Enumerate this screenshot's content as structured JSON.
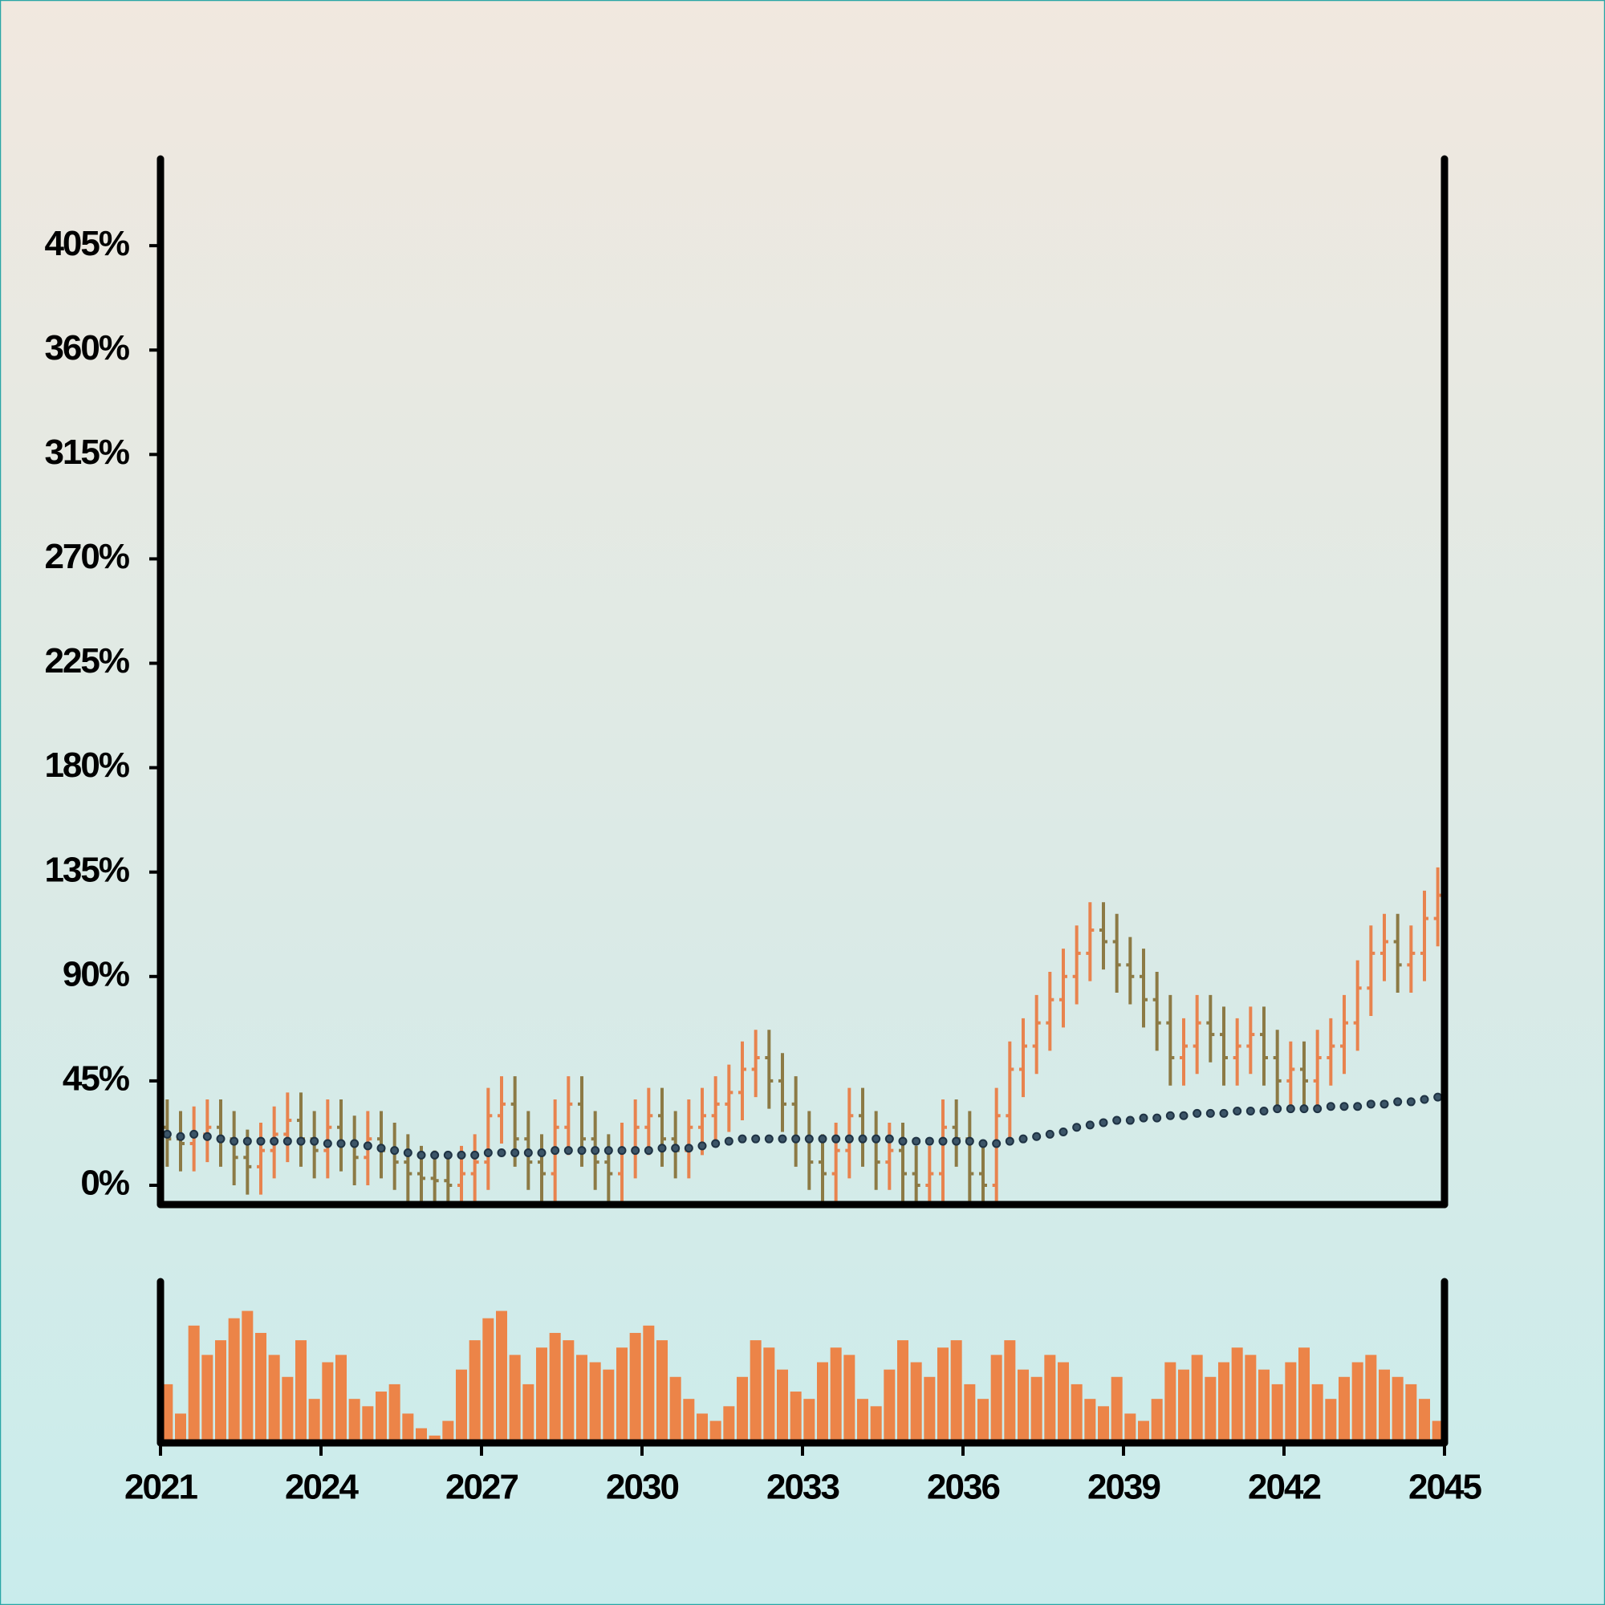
{
  "chart_data": {
    "type": "ohlc",
    "x": [
      2021.125,
      2021.375,
      2021.625,
      2021.875,
      2022.125,
      2022.375,
      2022.625,
      2022.875,
      2023.125,
      2023.375,
      2023.625,
      2023.875,
      2024.125,
      2024.375,
      2024.625,
      2024.875,
      2025.125,
      2025.375,
      2025.625,
      2025.875,
      2026.125,
      2026.375,
      2026.625,
      2026.875,
      2027.125,
      2027.375,
      2027.625,
      2027.875,
      2028.125,
      2028.375,
      2028.625,
      2028.875,
      2029.125,
      2029.375,
      2029.625,
      2029.875,
      2030.125,
      2030.375,
      2030.625,
      2030.875,
      2031.125,
      2031.375,
      2031.625,
      2031.875,
      2032.125,
      2032.375,
      2032.625,
      2032.875,
      2033.125,
      2033.375,
      2033.625,
      2033.875,
      2034.125,
      2034.375,
      2034.625,
      2034.875,
      2035.125,
      2035.375,
      2035.625,
      2035.875,
      2036.125,
      2036.375,
      2036.625,
      2036.875,
      2037.125,
      2037.375,
      2037.625,
      2037.875,
      2038.125,
      2038.375,
      2038.625,
      2038.875,
      2039.125,
      2039.375,
      2039.625,
      2039.875,
      2040.125,
      2040.375,
      2040.625,
      2040.875,
      2041.125,
      2041.375,
      2041.625,
      2041.875,
      2042.125,
      2042.375,
      2042.625,
      2042.875,
      2043.125,
      2043.375,
      2043.625,
      2043.875,
      2044.125,
      2044.375,
      2044.625,
      2044.875
    ],
    "open": [
      25,
      20,
      18,
      22,
      25,
      20,
      12,
      8,
      15,
      22,
      28,
      20,
      15,
      25,
      18,
      12,
      20,
      15,
      10,
      5,
      3,
      2,
      0,
      5,
      10,
      30,
      35,
      20,
      10,
      5,
      25,
      35,
      20,
      10,
      5,
      15,
      25,
      30,
      20,
      15,
      25,
      30,
      35,
      40,
      50,
      55,
      45,
      35,
      20,
      10,
      5,
      15,
      30,
      20,
      10,
      15,
      5,
      0,
      5,
      25,
      20,
      5,
      0,
      30,
      50,
      60,
      70,
      80,
      90,
      100,
      110,
      105,
      95,
      90,
      80,
      70,
      55,
      60,
      70,
      65,
      55,
      60,
      65,
      55,
      45,
      50,
      45,
      55,
      60,
      70,
      85,
      100,
      105,
      95,
      100,
      115
    ],
    "high": [
      37,
      32,
      34,
      37,
      37,
      32,
      24,
      27,
      34,
      40,
      40,
      32,
      37,
      37,
      30,
      32,
      32,
      27,
      22,
      17,
      15,
      14,
      17,
      22,
      42,
      47,
      47,
      32,
      22,
      37,
      47,
      47,
      32,
      22,
      27,
      37,
      42,
      42,
      32,
      37,
      42,
      47,
      52,
      62,
      67,
      67,
      57,
      47,
      32,
      22,
      27,
      42,
      42,
      32,
      27,
      27,
      17,
      17,
      37,
      37,
      32,
      17,
      42,
      62,
      72,
      82,
      92,
      102,
      112,
      122,
      122,
      117,
      107,
      102,
      92,
      82,
      72,
      82,
      82,
      77,
      72,
      77,
      77,
      67,
      62,
      62,
      67,
      72,
      82,
      97,
      112,
      117,
      117,
      112,
      127,
      137
    ],
    "low": [
      8,
      6,
      6,
      10,
      8,
      0,
      -4,
      -4,
      3,
      10,
      8,
      3,
      3,
      6,
      0,
      0,
      3,
      -2,
      -7,
      -9,
      -10,
      -12,
      -12,
      -7,
      -2,
      18,
      8,
      -2,
      -7,
      -7,
      13,
      8,
      -2,
      -7,
      -7,
      3,
      13,
      8,
      3,
      3,
      13,
      18,
      23,
      28,
      38,
      33,
      23,
      8,
      -2,
      -7,
      -7,
      3,
      8,
      -2,
      -2,
      -7,
      -12,
      -12,
      -7,
      8,
      -7,
      -12,
      -12,
      18,
      38,
      48,
      58,
      68,
      78,
      88,
      93,
      83,
      78,
      68,
      58,
      43,
      43,
      48,
      53,
      43,
      43,
      48,
      43,
      33,
      33,
      33,
      33,
      43,
      48,
      58,
      73,
      88,
      83,
      83,
      88,
      103
    ],
    "close": [
      20,
      18,
      22,
      25,
      20,
      12,
      8,
      15,
      22,
      28,
      20,
      15,
      25,
      18,
      12,
      20,
      15,
      10,
      5,
      3,
      2,
      0,
      5,
      10,
      30,
      35,
      20,
      10,
      5,
      25,
      35,
      20,
      10,
      5,
      15,
      25,
      30,
      20,
      15,
      25,
      30,
      35,
      40,
      50,
      55,
      45,
      35,
      20,
      10,
      5,
      15,
      30,
      20,
      10,
      15,
      5,
      0,
      5,
      25,
      20,
      5,
      0,
      30,
      50,
      60,
      70,
      80,
      90,
      100,
      110,
      105,
      95,
      90,
      80,
      70,
      55,
      60,
      70,
      65,
      55,
      60,
      65,
      55,
      45,
      50,
      45,
      55,
      60,
      70,
      85,
      100,
      105,
      95,
      100,
      115,
      125
    ],
    "moving_average": [
      22,
      21,
      22,
      21,
      20,
      19,
      19,
      19,
      19,
      19,
      19,
      19,
      18,
      18,
      18,
      17,
      16,
      15,
      14,
      13,
      13,
      13,
      13,
      13,
      14,
      14,
      14,
      14,
      14,
      15,
      15,
      15,
      15,
      15,
      15,
      15,
      15,
      16,
      16,
      16,
      17,
      18,
      19,
      20,
      20,
      20,
      20,
      20,
      20,
      20,
      20,
      20,
      20,
      20,
      20,
      19,
      19,
      19,
      19,
      19,
      19,
      18,
      18,
      19,
      20,
      21,
      22,
      23,
      25,
      26,
      27,
      28,
      28,
      29,
      29,
      30,
      30,
      31,
      31,
      31,
      32,
      32,
      32,
      33,
      33,
      33,
      33,
      34,
      34,
      34,
      35,
      35,
      36,
      36,
      37,
      38
    ],
    "volume": [
      40,
      20,
      80,
      60,
      70,
      85,
      90,
      75,
      60,
      45,
      70,
      30,
      55,
      60,
      30,
      25,
      35,
      40,
      20,
      10,
      5,
      15,
      50,
      70,
      85,
      90,
      60,
      40,
      65,
      75,
      70,
      60,
      55,
      50,
      65,
      75,
      80,
      70,
      45,
      30,
      20,
      15,
      25,
      45,
      70,
      65,
      50,
      35,
      30,
      55,
      65,
      60,
      30,
      25,
      50,
      70,
      55,
      45,
      65,
      70,
      40,
      30,
      60,
      70,
      50,
      45,
      60,
      55,
      40,
      30,
      25,
      45,
      20,
      15,
      30,
      55,
      50,
      60,
      45,
      55,
      65,
      60,
      50,
      40,
      55,
      65,
      40,
      30,
      45,
      55,
      60,
      50,
      45,
      40,
      30,
      15
    ],
    "up_color": "#e8834e",
    "down_color": "#8c7a45",
    "moving_average_color": "#1f3344",
    "volume_color": "#ec8448",
    "xlim": [
      2021,
      2045
    ],
    "xticks": [
      2021,
      2024,
      2027,
      2030,
      2033,
      2036,
      2039,
      2042,
      2045
    ],
    "ylim": [
      -8.3,
      442.4
    ],
    "yticks": [
      {
        "value": 0,
        "label": "0%"
      },
      {
        "value": 45,
        "label": "45%"
      },
      {
        "value": 90,
        "label": "90%"
      },
      {
        "value": 135,
        "label": "135%"
      },
      {
        "value": 180,
        "label": "180%"
      },
      {
        "value": 225,
        "label": "225%"
      },
      {
        "value": 270,
        "label": "270%"
      },
      {
        "value": 315,
        "label": "315%"
      },
      {
        "value": 360,
        "label": "360%"
      },
      {
        "value": 405,
        "label": "405%"
      }
    ],
    "volume_ylim": [
      0,
      110
    ]
  }
}
